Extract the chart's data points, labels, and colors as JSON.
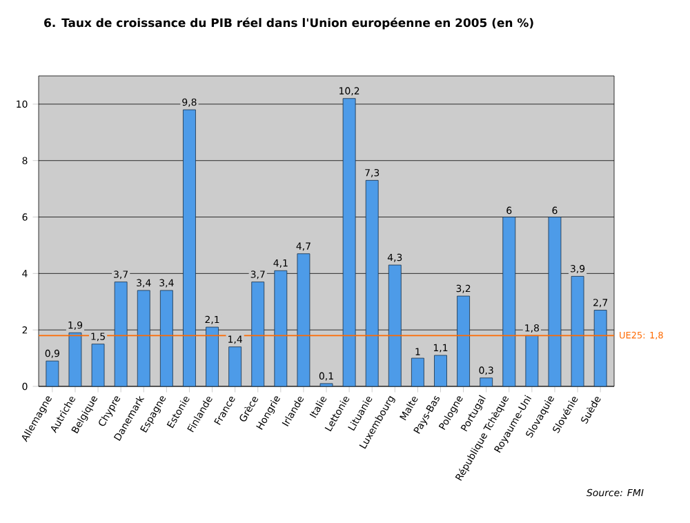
{
  "chart_data": {
    "type": "bar",
    "title": "6. Taux de croissance du PIB réel dans l'Union européenne en 2005 (en %)",
    "categories": [
      "Allemagne",
      "Autriche",
      "Belgique",
      "Chypre",
      "Danemark",
      "Espagne",
      "Estonie",
      "Finlande",
      "France",
      "Grèce",
      "Hongrie",
      "Irlande",
      "Italie",
      "Lettonie",
      "Lituanie",
      "Luxembourg",
      "Malte",
      "Pays-Bas",
      "Pologne",
      "Portugal",
      "République Tchèque",
      "Royaume-Uni",
      "Slovaquie",
      "Slovénie",
      "Suède"
    ],
    "values": [
      0.9,
      1.9,
      1.5,
      3.7,
      3.4,
      3.4,
      9.8,
      2.1,
      1.4,
      3.7,
      4.1,
      4.7,
      0.1,
      10.2,
      7.3,
      4.3,
      1,
      1.1,
      3.2,
      0.3,
      6,
      1.8,
      6,
      3.9,
      2.7
    ],
    "value_labels": [
      "0,9",
      "1,9",
      "1,5",
      "3,7",
      "3,4",
      "3,4",
      "9,8",
      "2,1",
      "1,4",
      "3,7",
      "4,1",
      "4,7",
      "0,1",
      "10,2",
      "7,3",
      "4,3",
      "1",
      "1,1",
      "3,2",
      "0,3",
      "6",
      "1,8",
      "6",
      "3,9",
      "2,7"
    ],
    "color": "#4d9be8",
    "ylim": [
      0,
      11
    ],
    "yticks": [
      0,
      2,
      4,
      6,
      8,
      10
    ],
    "grid": "y",
    "ref_lines": [
      {
        "axis": "y",
        "value": 1.8,
        "label": "UE25: 1,8",
        "color": "#ff6a00"
      }
    ],
    "annotations": [
      "Source: FMI"
    ]
  }
}
